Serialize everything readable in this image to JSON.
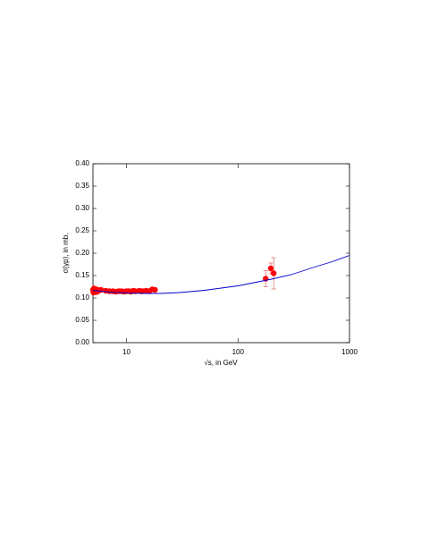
{
  "chart_data": {
    "type": "scatter",
    "log_x": true,
    "xlabel": "√s, in GeV",
    "ylabel": "σ(γp), in mb.",
    "xlim": [
      5,
      1000
    ],
    "ylim": [
      0,
      0.4
    ],
    "xticks": [
      10,
      100,
      1000
    ],
    "yticks": [
      {
        "value": 0,
        "label": "0.00"
      },
      {
        "value": 0.05,
        "label": "0.05"
      },
      {
        "value": 0.1,
        "label": "0.10"
      },
      {
        "value": 0.15,
        "label": "0.15"
      },
      {
        "value": 0.2,
        "label": "0.20"
      },
      {
        "value": 0.25,
        "label": "0.25"
      },
      {
        "value": 0.3,
        "label": "0.30"
      },
      {
        "value": 0.35,
        "label": "0.35"
      },
      {
        "value": 0.4,
        "label": "0.40"
      }
    ],
    "series": [
      {
        "type": "scatter",
        "color": "#ff0000",
        "errcolor": "#e06060",
        "x": [
          5.0,
          5.05,
          5.1,
          5.2,
          5.3,
          5.4,
          5.5,
          5.7,
          5.9,
          6.5,
          7.0,
          7.5,
          8.0,
          8.5,
          9.0,
          9.5,
          10.0,
          10.5,
          11.0,
          11.5,
          12.0,
          13.0,
          13.5,
          14.0,
          15.0,
          16.0,
          17.0,
          18.0,
          177,
          197,
          209
        ],
        "values": [
          0.118,
          0.112,
          0.121,
          0.115,
          0.113,
          0.119,
          0.114,
          0.117,
          0.118,
          0.116,
          0.115,
          0.115,
          0.114,
          0.115,
          0.115,
          0.114,
          0.115,
          0.115,
          0.114,
          0.116,
          0.115,
          0.116,
          0.115,
          0.115,
          0.116,
          0.115,
          0.119,
          0.118,
          0.143,
          0.166,
          0.155
        ],
        "errors": [
          null,
          null,
          null,
          null,
          null,
          null,
          null,
          null,
          null,
          null,
          null,
          null,
          null,
          null,
          null,
          null,
          null,
          null,
          null,
          null,
          null,
          null,
          null,
          null,
          null,
          null,
          null,
          null,
          0.018,
          0.012,
          0.035
        ]
      },
      {
        "type": "line",
        "color": "#0000cc",
        "x": [
          5,
          7,
          10,
          15,
          20,
          30,
          50,
          100,
          200,
          300,
          500,
          700,
          1000
        ],
        "values": [
          0.117,
          0.113,
          0.111,
          0.11,
          0.11,
          0.112,
          0.117,
          0.127,
          0.142,
          0.152,
          0.17,
          0.181,
          0.195
        ]
      }
    ]
  }
}
